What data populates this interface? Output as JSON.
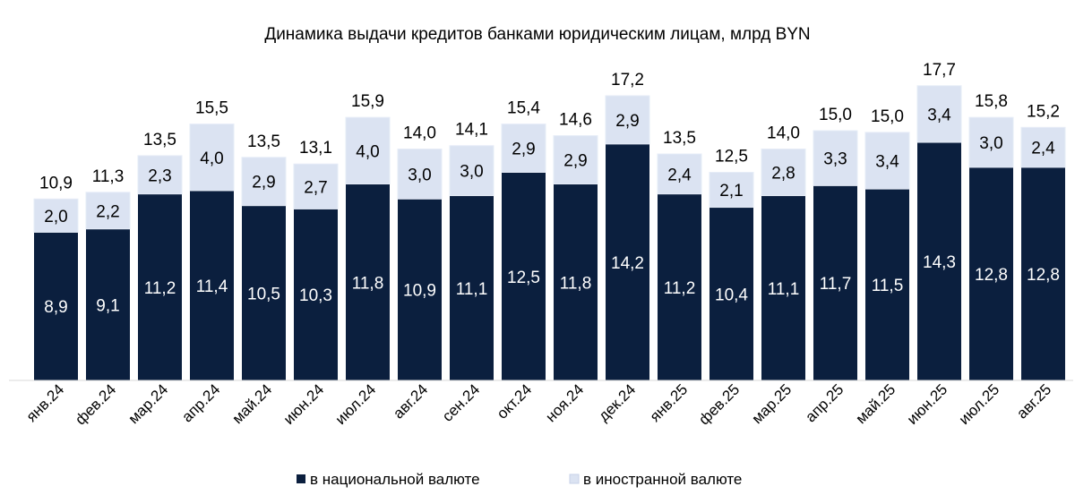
{
  "chart_data": {
    "type": "bar",
    "stacked": true,
    "title": "Динамика выдачи кредитов банками юридическим лицам, млрд BYN",
    "xlabel": "",
    "ylabel": "",
    "ylim": [
      0,
      18.5
    ],
    "grid": false,
    "legend_position": "bottom",
    "categories": [
      "янв.24",
      "фев.24",
      "мар.24",
      "апр.24",
      "май.24",
      "июн.24",
      "июл.24",
      "авг.24",
      "сен.24",
      "окт.24",
      "ноя.24",
      "дек.24",
      "янв.25",
      "фев.25",
      "мар.25",
      "апр.25",
      "май.25",
      "июн.25",
      "июл.25",
      "авг.25"
    ],
    "series": [
      {
        "name": "в национальной валюте",
        "color": "#0b1f3e",
        "label_color": "#ffffff",
        "values": [
          8.9,
          9.1,
          11.2,
          11.4,
          10.5,
          10.3,
          11.8,
          10.9,
          11.1,
          12.5,
          11.8,
          14.2,
          11.2,
          10.4,
          11.1,
          11.7,
          11.5,
          14.3,
          12.8,
          12.8
        ],
        "labels": [
          "8,9",
          "9,1",
          "11,2",
          "11,4",
          "10,5",
          "10,3",
          "11,8",
          "10,9",
          "11,1",
          "12,5",
          "11,8",
          "14,2",
          "11,2",
          "10,4",
          "11,1",
          "11,7",
          "11,5",
          "14,3",
          "12,8",
          "12,8"
        ]
      },
      {
        "name": "в иностранной валюте",
        "color": "#dbe3f2",
        "label_color": "#000000",
        "values": [
          2.0,
          2.2,
          2.3,
          4.0,
          2.9,
          2.7,
          4.0,
          3.0,
          3.0,
          2.9,
          2.9,
          2.9,
          2.4,
          2.1,
          2.8,
          3.3,
          3.4,
          3.4,
          3.0,
          2.4
        ],
        "labels": [
          "2,0",
          "2,2",
          "2,3",
          "4,0",
          "2,9",
          "2,7",
          "4,0",
          "3,0",
          "3,0",
          "2,9",
          "2,9",
          "2,9",
          "2,4",
          "2,1",
          "2,8",
          "3,3",
          "3,4",
          "3,4",
          "3,0",
          "2,4"
        ]
      }
    ],
    "totals": [
      10.9,
      11.3,
      13.5,
      15.5,
      13.5,
      13.1,
      15.9,
      14.0,
      14.1,
      15.4,
      14.6,
      17.2,
      13.5,
      12.5,
      14.0,
      15.0,
      15.0,
      17.7,
      15.8,
      15.2
    ],
    "total_labels": [
      "10,9",
      "11,3",
      "13,5",
      "15,5",
      "13,5",
      "13,1",
      "15,9",
      "14,0",
      "14,1",
      "15,4",
      "14,6",
      "17,2",
      "13,5",
      "12,5",
      "14,0",
      "15,0",
      "15,0",
      "17,7",
      "15,8",
      "15,2"
    ]
  }
}
